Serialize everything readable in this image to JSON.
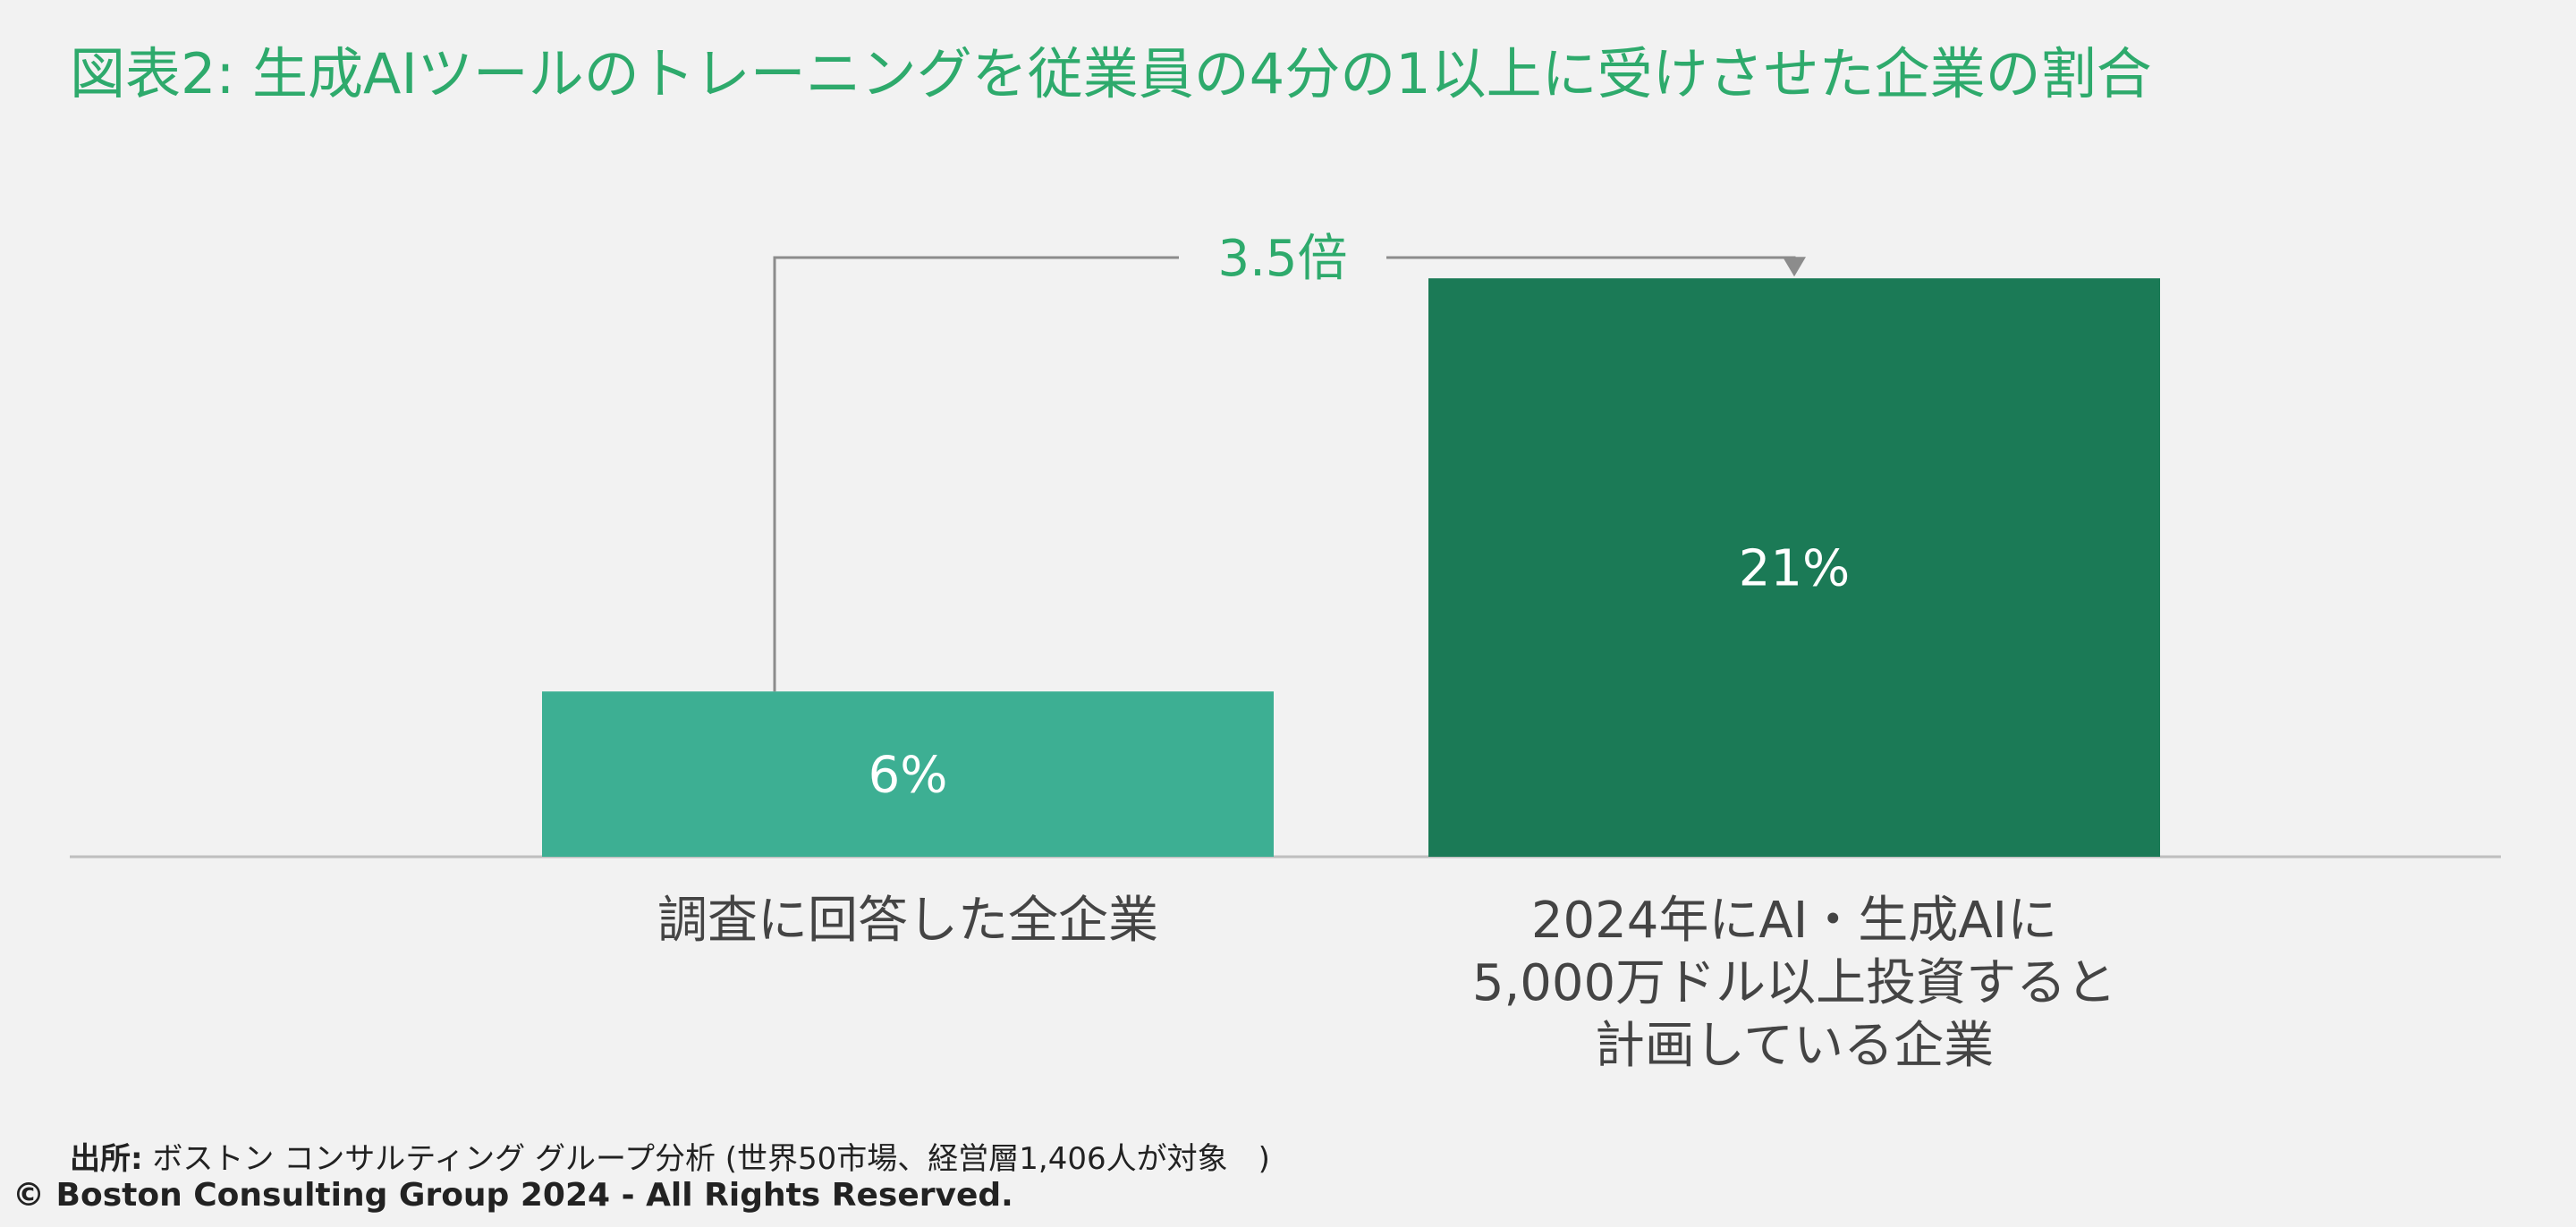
{
  "title": "図表2: 生成AIツールのトレーニングを従業員の4分の1以上に受けさせた企業の割合",
  "chart_data": {
    "type": "bar",
    "categories": [
      [
        "調査に回答した全企業"
      ],
      [
        "2024年にAI・生成AIに",
        "5,000万ドル以上投資すると",
        "計画している企業"
      ]
    ],
    "values": [
      6,
      21
    ],
    "value_labels": [
      "6%",
      "21%"
    ],
    "colors": [
      "#3daf93",
      "#1b7a56"
    ],
    "annotation": "3.5倍",
    "annotation_color": "#2eaa6c",
    "ylim": [
      0,
      30
    ]
  },
  "footer": {
    "source_label": "出所:",
    "source_text": " ボストン コンサルティング グループ分析 (世界50市場、経営層1,406人が対象　)",
    "copyright": "© Boston Consulting Group 2024 - All Rights Reserved."
  }
}
